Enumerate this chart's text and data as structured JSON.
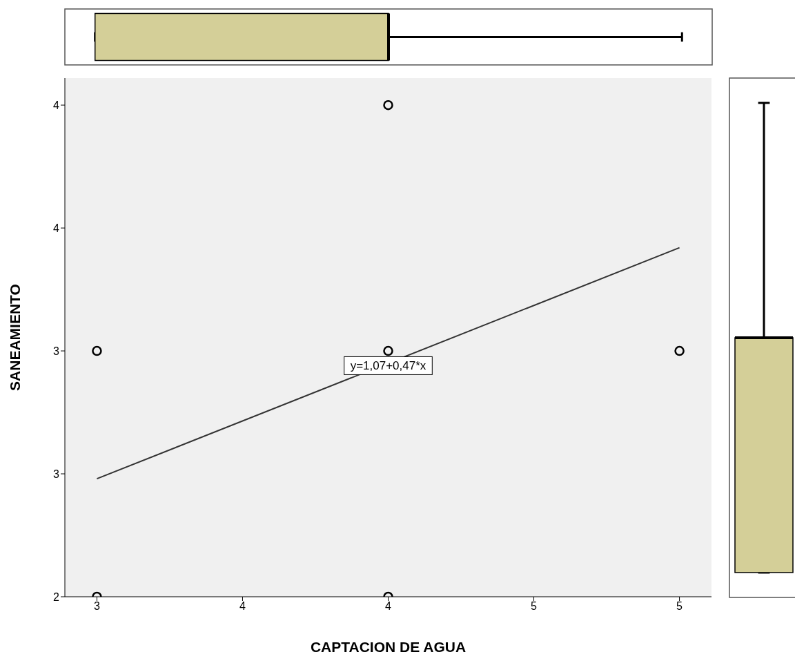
{
  "chart_data": {
    "type": "scatter",
    "xlabel": "CAPTACION DE AGUA",
    "ylabel": "SANEAMIENTO",
    "xlim": [
      2.89,
      5.11
    ],
    "ylim": [
      2,
      4.11
    ],
    "xticks": [
      3,
      {
        "value": 3.5,
        "label": "4"
      },
      4,
      {
        "value": 4.5,
        "label": "5"
      },
      5
    ],
    "yticks": [
      2,
      {
        "value": 2.5,
        "label": "3"
      },
      3,
      {
        "value": 3.5,
        "label": "4"
      },
      4
    ],
    "grid": false,
    "legend": false,
    "series": [
      {
        "type": "scatter",
        "color": "#000000",
        "marker": "circle",
        "x": [
          3,
          3,
          4,
          4,
          4,
          5
        ],
        "values": [
          2,
          3,
          4,
          3,
          2,
          3
        ]
      },
      {
        "type": "line",
        "color": "#333333",
        "marker": "none",
        "x": [
          3,
          5
        ],
        "values": [
          2.48,
          3.42
        ]
      }
    ],
    "annotations": [
      {
        "text": "y=1,07+0,47*x",
        "x": 4,
        "y": 2.94
      }
    ]
  }
}
